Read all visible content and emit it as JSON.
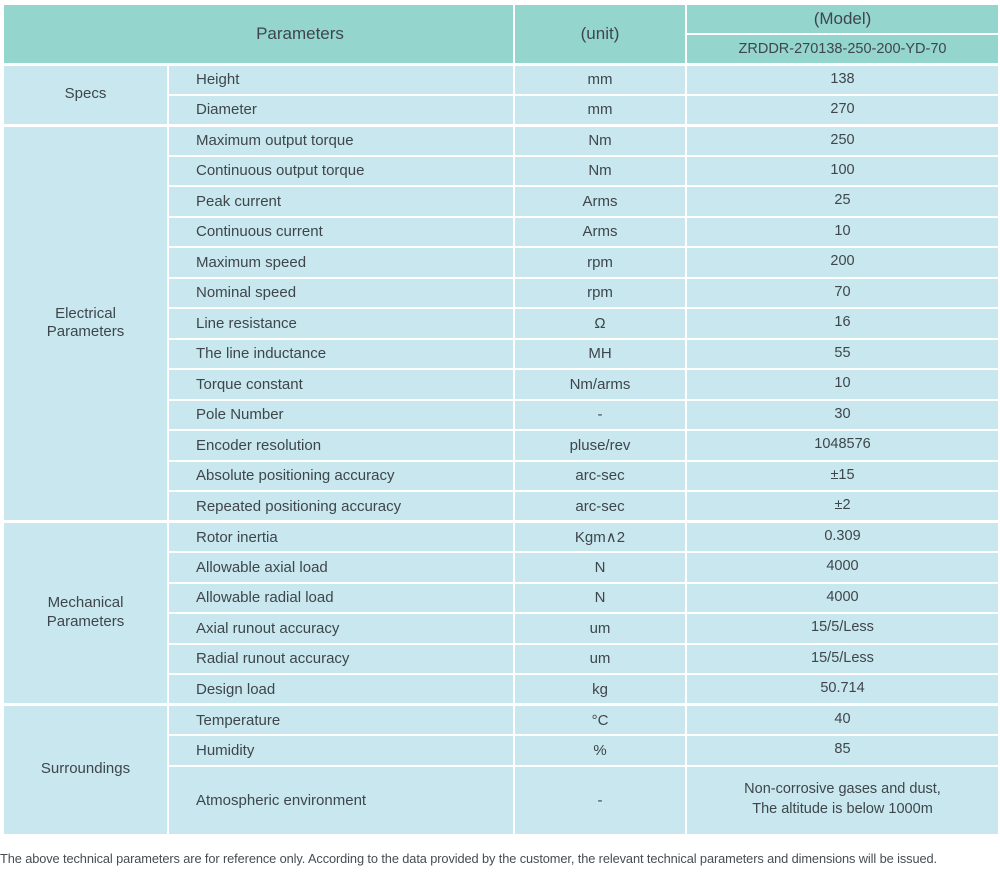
{
  "header": {
    "parameters": "Parameters",
    "unit": "(unit)",
    "model": "(Model)",
    "model_value": "ZRDDR-270138-250-200-YD-70"
  },
  "groups": [
    {
      "label": "Specs",
      "rows": [
        {
          "name": "Height",
          "unit": "mm",
          "value": "138"
        },
        {
          "name": "Diameter",
          "unit": "mm",
          "value": "270"
        }
      ]
    },
    {
      "label": "Electrical\nParameters",
      "rows": [
        {
          "name": "Maximum output torque",
          "unit": "Nm",
          "value": "250"
        },
        {
          "name": "Continuous output torque",
          "unit": "Nm",
          "value": "100"
        },
        {
          "name": "Peak current",
          "unit": "Arms",
          "value": "25"
        },
        {
          "name": "Continuous current",
          "unit": "Arms",
          "value": "10"
        },
        {
          "name": "Maximum speed",
          "unit": "rpm",
          "value": "200"
        },
        {
          "name": "Nominal speed",
          "unit": "rpm",
          "value": "70"
        },
        {
          "name": "Line resistance",
          "unit": "Ω",
          "value": "16"
        },
        {
          "name": "The line inductance",
          "unit": "MH",
          "value": "55"
        },
        {
          "name": "Torque constant",
          "unit": "Nm/arms",
          "value": "10"
        },
        {
          "name": "Pole Number",
          "unit": "-",
          "value": "30"
        },
        {
          "name": "Encoder resolution",
          "unit": "pluse/rev",
          "value": "1048576"
        },
        {
          "name": "Absolute positioning accuracy",
          "unit": "arc-sec",
          "value": "±15"
        },
        {
          "name": "Repeated positioning accuracy",
          "unit": "arc-sec",
          "value": "±2"
        }
      ]
    },
    {
      "label": "Mechanical\nParameters",
      "rows": [
        {
          "name": "Rotor inertia",
          "unit": "Kgm∧2",
          "value": "0.309"
        },
        {
          "name": "Allowable axial load",
          "unit": "N",
          "value": "4000"
        },
        {
          "name": "Allowable radial load",
          "unit": "N",
          "value": "4000"
        },
        {
          "name": "Axial runout accuracy",
          "unit": "um",
          "value": "15/5/Less"
        },
        {
          "name": "Radial runout accuracy",
          "unit": "um",
          "value": "15/5/Less"
        },
        {
          "name": "Design load",
          "unit": "kg",
          "value": "50.714"
        }
      ]
    },
    {
      "label": "Surroundings",
      "rows": [
        {
          "name": "Temperature",
          "unit": "°C",
          "value": "40"
        },
        {
          "name": "Humidity",
          "unit": "%",
          "value": "85"
        },
        {
          "name": "Atmospheric environment",
          "unit": "-",
          "value": "Non-corrosive gases and dust,\nThe altitude is below 1000m",
          "tall": true
        }
      ]
    }
  ],
  "footer": {
    "note": "The above technical parameters are for reference only. According to the data provided by the customer, the relevant technical parameters and dimensions will be issued."
  },
  "colors": {
    "header_bg": "#94d5ce",
    "row_bg": "#c9e7ee",
    "border": "#ffffff",
    "text": "#3e464c"
  }
}
